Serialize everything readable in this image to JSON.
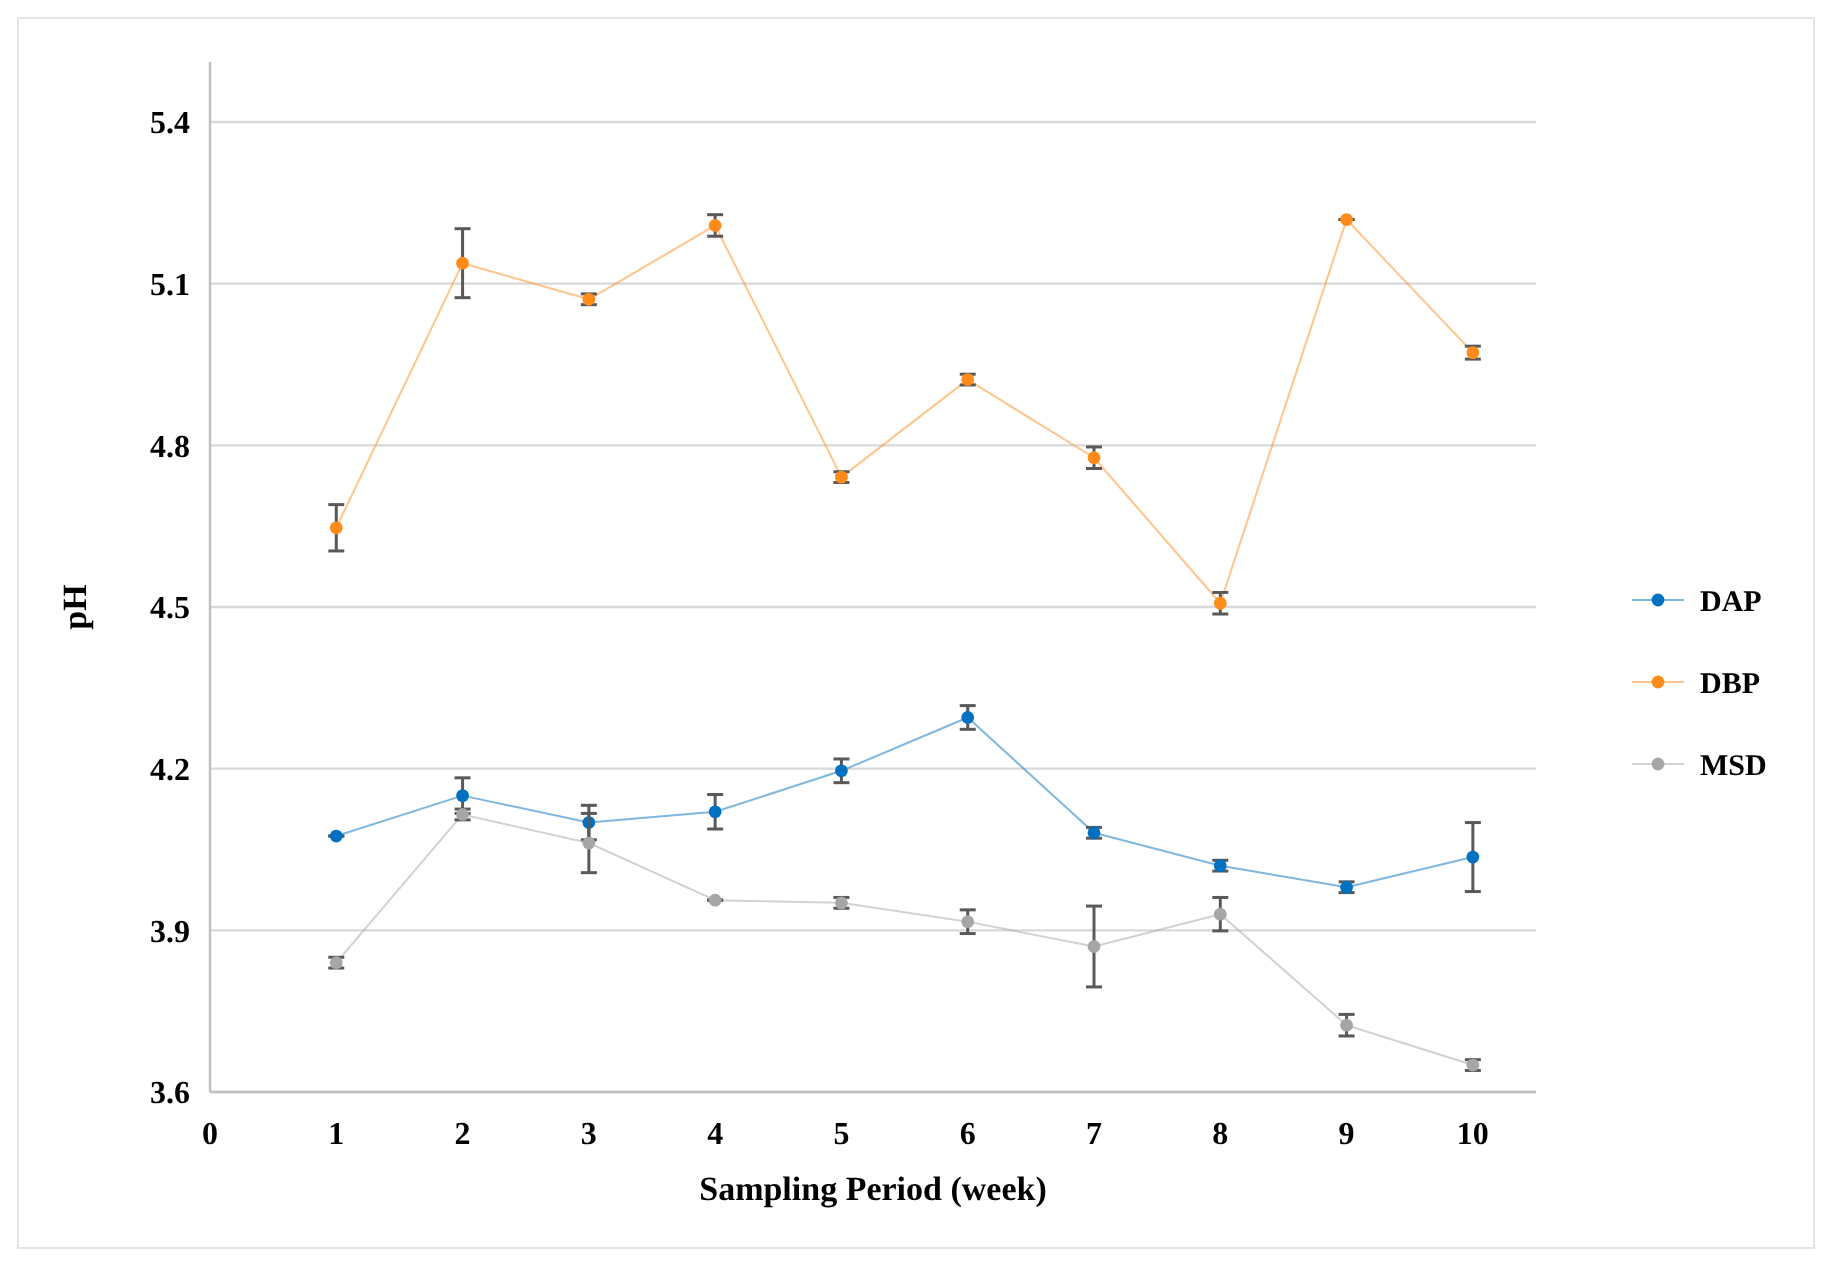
{
  "chart_data": {
    "type": "line",
    "xlabel": "Sampling Period (week)",
    "ylabel": "pH",
    "x": [
      1,
      2,
      3,
      4,
      5,
      6,
      7,
      8,
      9,
      10
    ],
    "xlim": [
      0,
      10.5
    ],
    "xticks": [
      0,
      1,
      2,
      3,
      4,
      5,
      6,
      7,
      8,
      9,
      10
    ],
    "ylim": [
      3.6,
      5.4
    ],
    "yticks": [
      3.6,
      3.9,
      4.2,
      4.5,
      4.8,
      5.1,
      5.4
    ],
    "grid": "y",
    "legend": "right",
    "marker": "circle",
    "line_style": "solid",
    "series": [
      {
        "name": "DAP",
        "color": "#0070c0",
        "values": [
          4.075,
          4.15,
          4.1,
          4.12,
          4.196,
          4.295,
          4.081,
          4.02,
          3.98,
          4.036
        ],
        "errors": [
          0,
          0.033,
          0.032,
          0.032,
          0.022,
          0.022,
          0.01,
          0.01,
          0.01,
          0.064
        ]
      },
      {
        "name": "DBP",
        "color": "#ff8c1a",
        "values": [
          4.647,
          5.138,
          5.071,
          5.208,
          4.741,
          4.922,
          4.777,
          4.507,
          5.219,
          4.972
        ],
        "errors": [
          0.043,
          0.064,
          0.01,
          0.02,
          0.01,
          0.01,
          0.02,
          0.02,
          0,
          0.012
        ]
      },
      {
        "name": "MSD",
        "color": "#a6a6a6",
        "values": [
          3.84,
          4.115,
          4.062,
          3.956,
          3.951,
          3.916,
          3.87,
          3.93,
          3.724,
          3.65
        ],
        "errors": [
          0.01,
          0.01,
          0.055,
          0,
          0.01,
          0.022,
          0.075,
          0.031,
          0.02,
          0.01
        ]
      }
    ]
  }
}
